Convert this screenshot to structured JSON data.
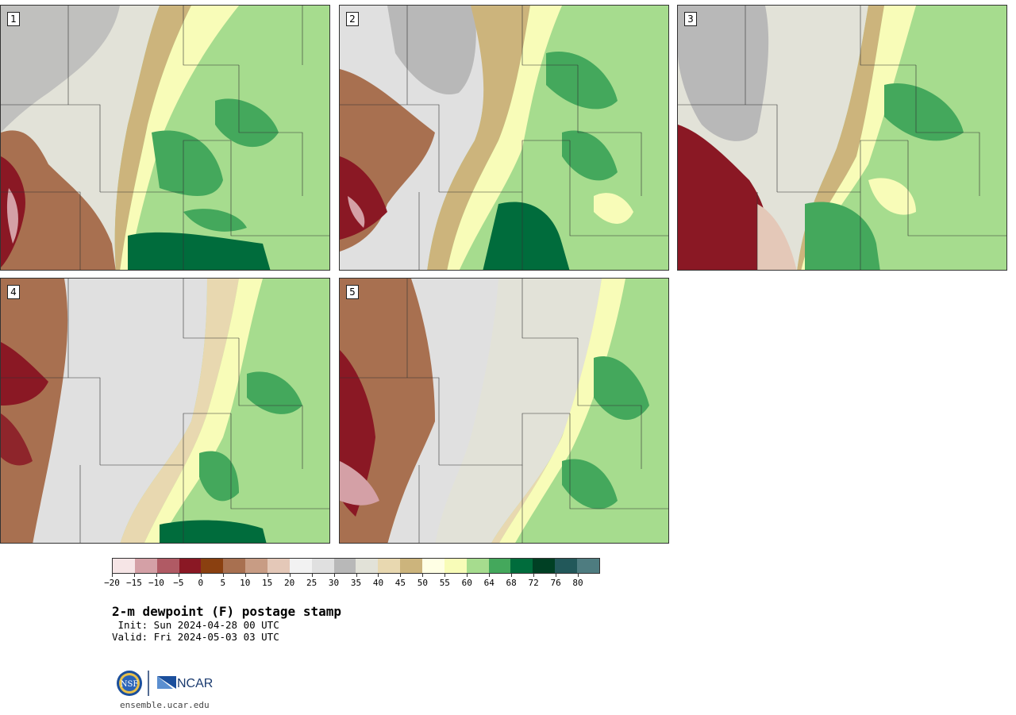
{
  "panels": [
    {
      "label": "1"
    },
    {
      "label": "2"
    },
    {
      "label": "3"
    },
    {
      "label": "4"
    },
    {
      "label": "5"
    }
  ],
  "colorbar": {
    "colors": [
      "#f6e5e6",
      "#d4a0a6",
      "#b05a64",
      "#8a1824",
      "#8a4010",
      "#a87050",
      "#c89c84",
      "#e4c8b8",
      "#f2f2f2",
      "#e0e0e0",
      "#b8b8b8",
      "#e2e2d8",
      "#e8d8b0",
      "#ccb47c",
      "#ffffe4",
      "#f8fcb8",
      "#a6dc8e",
      "#44a85c",
      "#006c3c",
      "#004024",
      "#22585a",
      "#4e7c80"
    ],
    "tick_labels": [
      "−20",
      "−15",
      "−10",
      "−5",
      "0",
      "5",
      "10",
      "15",
      "20",
      "25",
      "30",
      "35",
      "40",
      "45",
      "50",
      "55",
      "60",
      "64",
      "68",
      "72",
      "76",
      "80"
    ]
  },
  "title": "2-m dewpoint (F) postage stamp",
  "init_line": " Init: Sun 2024-04-28 00 UTC",
  "valid_line": "Valid: Fri 2024-05-03 03 UTC",
  "logos": {
    "nsf": "NSF",
    "ncar": "NCAR"
  },
  "url": "ensemble.ucar.edu"
}
